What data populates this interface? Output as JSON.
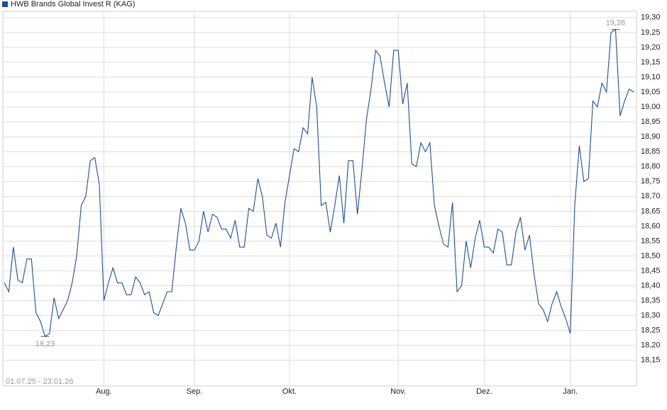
{
  "chart_data": {
    "type": "line",
    "series": [
      {
        "name": "HWB Brands Global Invest R (KAG)",
        "color": "#1c4f9c",
        "values": [
          18.41,
          18.38,
          18.53,
          18.42,
          18.41,
          18.49,
          18.49,
          18.31,
          18.28,
          18.23,
          18.24,
          18.36,
          18.29,
          18.32,
          18.35,
          18.41,
          18.5,
          18.67,
          18.7,
          18.82,
          18.83,
          18.74,
          18.35,
          18.41,
          18.46,
          18.41,
          18.41,
          18.37,
          18.37,
          18.43,
          18.41,
          18.37,
          18.38,
          18.31,
          18.3,
          18.34,
          18.38,
          18.38,
          18.53,
          18.66,
          18.61,
          18.52,
          18.52,
          18.55,
          18.65,
          18.58,
          18.64,
          18.63,
          18.59,
          18.59,
          18.56,
          18.62,
          18.53,
          18.53,
          18.66,
          18.65,
          18.76,
          18.7,
          18.57,
          18.56,
          18.61,
          18.53,
          18.68,
          18.77,
          18.86,
          18.85,
          18.93,
          18.91,
          19.1,
          19.0,
          18.67,
          18.68,
          18.58,
          18.67,
          18.77,
          18.61,
          18.82,
          18.82,
          18.64,
          18.79,
          18.96,
          19.06,
          19.19,
          19.17,
          19.08,
          19.0,
          19.19,
          19.19,
          19.01,
          19.08,
          18.81,
          18.8,
          18.88,
          18.85,
          18.88,
          18.67,
          18.6,
          18.54,
          18.53,
          18.68,
          18.38,
          18.4,
          18.55,
          18.46,
          18.56,
          18.62,
          18.53,
          18.53,
          18.51,
          18.59,
          18.58,
          18.47,
          18.47,
          18.58,
          18.63,
          18.52,
          18.57,
          18.44,
          18.34,
          18.32,
          18.28,
          18.34,
          18.38,
          18.33,
          18.29,
          18.24,
          18.67,
          18.87,
          18.75,
          18.76,
          19.02,
          19.0,
          19.08,
          19.05,
          19.25,
          19.26,
          18.97,
          19.02,
          19.06,
          19.05
        ]
      }
    ],
    "categories": [
      null,
      null,
      null,
      null,
      null,
      null,
      null,
      null,
      null,
      null,
      null,
      null,
      null,
      null,
      null,
      null,
      null,
      null,
      null,
      null,
      null,
      null,
      "Aug.",
      null,
      null,
      null,
      null,
      null,
      null,
      null,
      null,
      null,
      null,
      null,
      null,
      null,
      null,
      null,
      null,
      null,
      null,
      null,
      "Sep.",
      null,
      null,
      null,
      null,
      null,
      null,
      null,
      null,
      null,
      null,
      null,
      null,
      null,
      null,
      null,
      null,
      null,
      null,
      null,
      null,
      "Okt.",
      null,
      null,
      null,
      null,
      null,
      null,
      null,
      null,
      null,
      null,
      null,
      null,
      null,
      null,
      null,
      null,
      null,
      null,
      null,
      null,
      null,
      null,
      null,
      "Nov.",
      null,
      null,
      null,
      null,
      null,
      null,
      null,
      null,
      null,
      null,
      null,
      null,
      null,
      null,
      null,
      null,
      null,
      null,
      "Dez.",
      null,
      null,
      null,
      null,
      null,
      null,
      null,
      null,
      null,
      null,
      null,
      null,
      null,
      null,
      null,
      null,
      null,
      null,
      "Jan.",
      null,
      null,
      null,
      null,
      null,
      null,
      null,
      null,
      null,
      null,
      null,
      null,
      null,
      null
    ],
    "date_range": "01.07.25 - 23.01.26",
    "min_label": "18,23",
    "max_label": "19,26",
    "ylim": [
      18.064,
      19.321
    ],
    "yticks": [
      {
        "value": 18.15,
        "label": "18,15"
      },
      {
        "value": 18.2,
        "label": "18,20"
      },
      {
        "value": 18.25,
        "label": "18,25"
      },
      {
        "value": 18.3,
        "label": "18,30"
      },
      {
        "value": 18.35,
        "label": "18,35"
      },
      {
        "value": 18.4,
        "label": "18,40"
      },
      {
        "value": 18.45,
        "label": "18,45"
      },
      {
        "value": 18.5,
        "label": "18,50"
      },
      {
        "value": 18.55,
        "label": "18,55"
      },
      {
        "value": 18.6,
        "label": "18,60"
      },
      {
        "value": 18.65,
        "label": "18,65"
      },
      {
        "value": 18.7,
        "label": "18,70"
      },
      {
        "value": 18.75,
        "label": "18,75"
      },
      {
        "value": 18.8,
        "label": "18,80"
      },
      {
        "value": 18.85,
        "label": "18,85"
      },
      {
        "value": 18.9,
        "label": "18,90"
      },
      {
        "value": 18.95,
        "label": "18,95"
      },
      {
        "value": 19.0,
        "label": "19,00"
      },
      {
        "value": 19.05,
        "label": "19,05"
      },
      {
        "value": 19.1,
        "label": "19,10"
      },
      {
        "value": 19.15,
        "label": "19,15"
      },
      {
        "value": 19.2,
        "label": "19,20"
      },
      {
        "value": 19.25,
        "label": "19,25"
      },
      {
        "value": 19.3,
        "label": "19,30"
      }
    ],
    "grid": true
  }
}
